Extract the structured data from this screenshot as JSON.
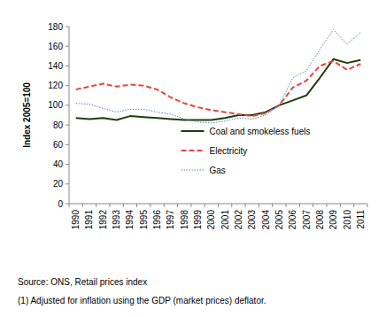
{
  "chart_data": {
    "type": "line",
    "y_label": "Index 2005=100",
    "annotations": [
      "Source: ONS, Retail prices index",
      "(1) Adjusted for inflation using the GDP (market prices) deflator."
    ],
    "categories": [
      "1990",
      "1991",
      "1992",
      "1993",
      "1994",
      "1995",
      "1996",
      "1997",
      "1998",
      "1999",
      "2000",
      "2001",
      "2002",
      "2003",
      "2004",
      "2005",
      "2006",
      "2007",
      "2008",
      "2009",
      "2010",
      "2011"
    ],
    "series": [
      {
        "name": "Coal and smokeless fuels",
        "color": "#1f3d0c",
        "line_style": "solid",
        "values": [
          87,
          86,
          87,
          85,
          89,
          88,
          87,
          86,
          85,
          85,
          85,
          87,
          90,
          90,
          93,
          100,
          105,
          110,
          128,
          147,
          143,
          146
        ]
      },
      {
        "name": "Electricity",
        "color": "#e8453c",
        "line_style": "dashed",
        "values": [
          116,
          119,
          122,
          119,
          121,
          120,
          116,
          108,
          102,
          98,
          95,
          93,
          91,
          89,
          92,
          100,
          118,
          125,
          140,
          145,
          136,
          142
        ]
      },
      {
        "name": "Gas",
        "color": "#5b7fd1",
        "line_style": "dotted",
        "values": [
          102,
          101,
          97,
          93,
          96,
          96,
          93,
          91,
          86,
          83,
          82,
          84,
          87,
          86,
          90,
          100,
          128,
          135,
          157,
          177,
          162,
          174
        ]
      }
    ],
    "ylim": [
      0,
      180
    ],
    "yticks": [
      0,
      20,
      40,
      60,
      80,
      100,
      120,
      140,
      160,
      180
    ],
    "grid": false,
    "legend": "lower center"
  }
}
